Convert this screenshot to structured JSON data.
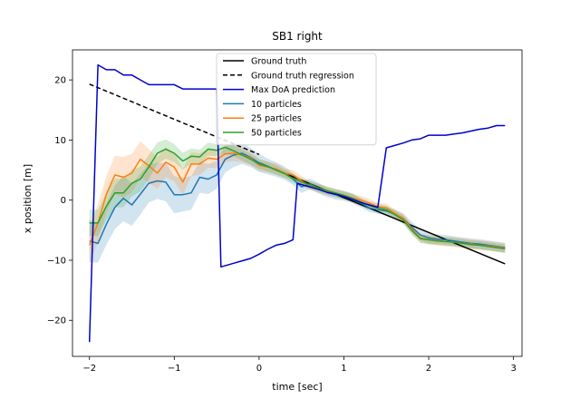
{
  "chart_data": {
    "type": "line",
    "title": "SB1 right",
    "xlabel": "time [sec]",
    "ylabel": "x position [m]",
    "xlim": [
      -2.2,
      3.1
    ],
    "ylim": [
      -26,
      25
    ],
    "xticks": [
      -2,
      -1,
      0,
      1,
      2,
      3
    ],
    "yticks": [
      -20,
      -10,
      0,
      10,
      20
    ],
    "xtick_labels": [
      "−2",
      "−1",
      "0",
      "1",
      "2",
      "3"
    ],
    "ytick_labels": [
      "−20",
      "−10",
      "0",
      "10",
      "20"
    ],
    "legend_position": "upper-center",
    "series": [
      {
        "name": "Ground truth",
        "color": "#000000",
        "style": "solid",
        "x": [
          0.0,
          2.9
        ],
        "y": [
          6.2,
          -10.6
        ]
      },
      {
        "name": "Ground truth regression",
        "color": "#000000",
        "style": "dashed",
        "x": [
          -2.0,
          0.0
        ],
        "y": [
          19.3,
          7.6
        ]
      },
      {
        "name": "Max DoA prediction",
        "color": "#0000cc",
        "style": "solid",
        "x": [
          -2.0,
          -1.9,
          -1.8,
          -1.7,
          -1.6,
          -1.5,
          -1.4,
          -1.3,
          -1.2,
          -1.1,
          -1.0,
          -0.9,
          -0.8,
          -0.7,
          -0.6,
          -0.5,
          -0.45,
          -0.3,
          -0.2,
          -0.1,
          0.0,
          0.1,
          0.2,
          0.3,
          0.4,
          0.45,
          0.5,
          0.6,
          0.7,
          0.8,
          0.9,
          1.0,
          1.1,
          1.2,
          1.3,
          1.4,
          1.5,
          1.6,
          1.7,
          1.8,
          1.9,
          2.0,
          2.1,
          2.2,
          2.3,
          2.4,
          2.5,
          2.6,
          2.7,
          2.8,
          2.9
        ],
        "y": [
          -23.6,
          22.5,
          21.7,
          21.7,
          20.8,
          20.8,
          20.0,
          19.2,
          19.2,
          19.2,
          19.2,
          18.5,
          18.5,
          18.5,
          18.5,
          18.5,
          -11.1,
          -10.5,
          -10.1,
          -9.7,
          -9.0,
          -8.2,
          -7.5,
          -7.2,
          -6.6,
          2.8,
          2.6,
          2.2,
          1.8,
          1.3,
          1.0,
          0.6,
          0.1,
          -0.4,
          -0.8,
          -1.2,
          8.7,
          9.1,
          9.5,
          10.0,
          10.2,
          10.8,
          10.8,
          10.8,
          11.0,
          11.2,
          11.5,
          11.8,
          12.0,
          12.4,
          12.4
        ]
      },
      {
        "name": "10 particles",
        "color": "#1f77b4",
        "style": "solid",
        "x": [
          -2.0,
          -1.9,
          -1.8,
          -1.7,
          -1.6,
          -1.5,
          -1.4,
          -1.3,
          -1.2,
          -1.1,
          -1.0,
          -0.9,
          -0.8,
          -0.7,
          -0.6,
          -0.5,
          -0.4,
          -0.3,
          -0.2,
          -0.1,
          0.0,
          0.1,
          0.2,
          0.3,
          0.4,
          0.5,
          0.6,
          0.7,
          0.8,
          0.9,
          1.0,
          1.1,
          1.2,
          1.3,
          1.4,
          1.5,
          1.6,
          1.7,
          1.8,
          1.9,
          2.0,
          2.1,
          2.2,
          2.3,
          2.4,
          2.5,
          2.6,
          2.7,
          2.8,
          2.9
        ],
        "y": [
          -6.8,
          -7.2,
          -4.0,
          -1.2,
          0.3,
          -0.8,
          1.0,
          2.8,
          3.2,
          3.0,
          0.9,
          0.9,
          1.2,
          3.8,
          3.5,
          4.2,
          6.8,
          7.5,
          7.8,
          7.1,
          6.2,
          5.6,
          5.1,
          4.5,
          3.5,
          2.2,
          2.7,
          2.0,
          1.3,
          0.9,
          0.7,
          0.3,
          -0.5,
          -1.3,
          -1.6,
          -1.8,
          -2.3,
          -3.0,
          -4.5,
          -5.8,
          -6.3,
          -6.5,
          -6.6,
          -6.8,
          -7.0,
          -7.2,
          -7.3,
          -7.5,
          -7.7,
          -7.9
        ]
      },
      {
        "name": "25 particles",
        "color": "#ff7f0e",
        "style": "solid",
        "x": [
          -2.0,
          -1.9,
          -1.8,
          -1.7,
          -1.6,
          -1.5,
          -1.4,
          -1.3,
          -1.2,
          -1.1,
          -1.0,
          -0.9,
          -0.8,
          -0.7,
          -0.6,
          -0.5,
          -0.4,
          -0.3,
          -0.2,
          -0.1,
          0.0,
          0.1,
          0.2,
          0.3,
          0.4,
          0.5,
          0.6,
          0.7,
          0.8,
          0.9,
          1.0,
          1.1,
          1.2,
          1.3,
          1.4,
          1.5,
          1.6,
          1.7,
          1.8,
          1.9,
          2.0,
          2.1,
          2.2,
          2.3,
          2.4,
          2.5,
          2.6,
          2.7,
          2.8,
          2.9
        ],
        "y": [
          -7.5,
          -3.8,
          1.0,
          4.2,
          3.8,
          4.5,
          6.8,
          5.7,
          4.5,
          6.3,
          5.5,
          3.0,
          6.0,
          6.0,
          7.0,
          6.8,
          7.7,
          7.8,
          7.5,
          7.0,
          5.8,
          5.5,
          5.2,
          4.5,
          4.2,
          3.2,
          2.4,
          2.0,
          1.5,
          1.2,
          0.8,
          0.4,
          0.0,
          -0.5,
          -1.1,
          -1.3,
          -2.2,
          -3.0,
          -4.8,
          -6.3,
          -6.6,
          -6.7,
          -6.9,
          -7.0,
          -7.2,
          -7.3,
          -7.5,
          -7.6,
          -7.8,
          -8.0
        ]
      },
      {
        "name": "50 particles",
        "color": "#2ca02c",
        "style": "solid",
        "x": [
          -2.0,
          -1.9,
          -1.8,
          -1.7,
          -1.6,
          -1.5,
          -1.4,
          -1.3,
          -1.2,
          -1.1,
          -1.0,
          -0.9,
          -0.8,
          -0.7,
          -0.6,
          -0.5,
          -0.4,
          -0.3,
          -0.2,
          -0.1,
          0.0,
          0.1,
          0.2,
          0.3,
          0.4,
          0.5,
          0.6,
          0.7,
          0.8,
          0.9,
          1.0,
          1.1,
          1.2,
          1.3,
          1.4,
          1.5,
          1.6,
          1.7,
          1.8,
          1.9,
          2.0,
          2.1,
          2.2,
          2.3,
          2.4,
          2.5,
          2.6,
          2.7,
          2.8,
          2.9
        ],
        "y": [
          -3.8,
          -3.8,
          -1.0,
          1.2,
          1.2,
          2.8,
          3.5,
          5.5,
          7.8,
          8.5,
          7.8,
          6.5,
          7.3,
          7.2,
          8.5,
          8.3,
          8.8,
          8.2,
          7.5,
          6.8,
          6.0,
          5.6,
          5.0,
          4.4,
          3.6,
          3.0,
          2.5,
          2.0,
          1.6,
          1.2,
          0.8,
          0.3,
          -0.3,
          -0.9,
          -1.3,
          -1.6,
          -2.4,
          -3.3,
          -5.0,
          -6.4,
          -6.6,
          -6.8,
          -6.9,
          -7.0,
          -7.2,
          -7.4,
          -7.5,
          -7.7,
          -7.9,
          -8.1
        ]
      }
    ],
    "bands": [
      {
        "series": "10 particles",
        "color": "#1f77b4",
        "half_width": [
          3.5,
          3.2,
          3.4,
          3.6,
          3.8,
          3.5,
          3.4,
          3.2,
          3.0,
          3.2,
          3.1,
          2.8,
          2.8,
          2.6,
          2.5,
          2.3,
          2.2,
          2.0,
          1.8,
          1.6,
          1.5,
          1.3,
          1.2,
          1.1,
          1.0,
          1.0,
          0.9,
          0.9,
          0.8,
          0.8,
          0.8,
          0.8,
          0.7,
          0.7,
          0.7,
          0.7,
          0.7,
          0.8,
          0.9,
          0.9,
          0.9,
          0.8,
          0.8,
          0.8,
          0.8,
          0.8,
          0.8,
          0.8,
          0.8,
          0.8
        ]
      },
      {
        "series": "25 particles",
        "color": "#ff7f0e",
        "half_width": [
          3.0,
          3.2,
          3.0,
          3.2,
          3.4,
          3.2,
          3.0,
          2.8,
          2.6,
          2.5,
          2.4,
          2.2,
          2.0,
          1.8,
          1.6,
          1.5,
          1.4,
          1.3,
          1.2,
          1.1,
          1.0,
          0.9,
          0.9,
          0.8,
          0.8,
          0.8,
          0.7,
          0.7,
          0.7,
          0.7,
          0.7,
          0.7,
          0.7,
          0.7,
          0.7,
          0.7,
          0.7,
          0.7,
          0.8,
          0.8,
          0.8,
          0.8,
          0.8,
          0.8,
          0.8,
          0.8,
          0.8,
          0.8,
          0.8,
          0.8
        ]
      },
      {
        "series": "50 particles",
        "color": "#2ca02c",
        "half_width": [
          2.2,
          2.2,
          2.3,
          2.4,
          2.4,
          2.2,
          2.1,
          2.0,
          1.8,
          1.6,
          1.5,
          1.4,
          1.3,
          1.2,
          1.1,
          1.0,
          1.0,
          0.9,
          0.9,
          0.9,
          0.8,
          0.8,
          0.8,
          0.7,
          0.7,
          0.7,
          0.7,
          0.7,
          0.7,
          0.7,
          0.7,
          0.7,
          0.7,
          0.7,
          0.7,
          0.7,
          0.7,
          0.7,
          0.7,
          0.7,
          0.7,
          0.7,
          0.7,
          0.7,
          0.7,
          0.7,
          0.7,
          0.7,
          0.7,
          0.7
        ]
      }
    ]
  }
}
